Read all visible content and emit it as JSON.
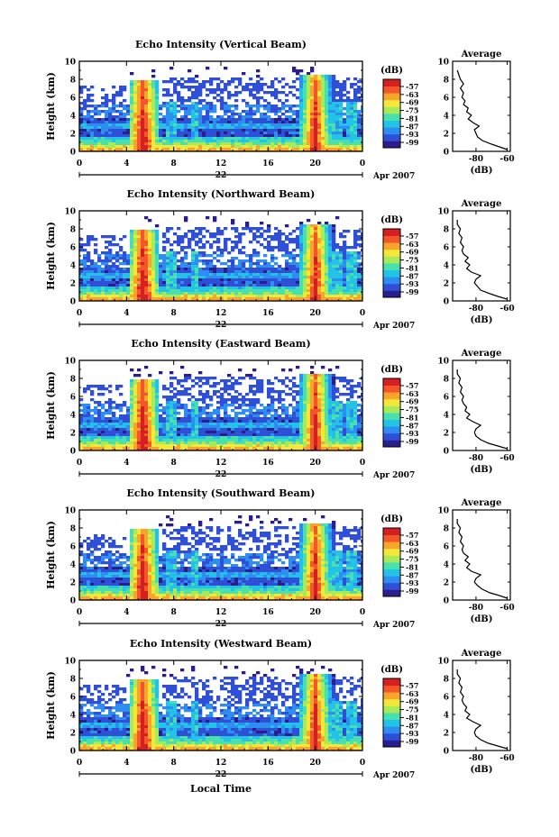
{
  "chart_data": {
    "type": "heatmap",
    "xlabel": "Local Time",
    "date_label": "22",
    "month_year": "Apr 2007",
    "ylabel": "Height (km)",
    "xlim": [
      0,
      24
    ],
    "ylim": [
      0,
      10
    ],
    "x_ticks": [
      "0",
      "4",
      "8",
      "12",
      "16",
      "20",
      "0"
    ],
    "y_ticks": [
      "0",
      "2",
      "4",
      "6",
      "8",
      "10"
    ],
    "colorbar": {
      "unit": "(dB)",
      "ticks": [
        "-57",
        "-63",
        "-69",
        "-75",
        "-81",
        "-87",
        "-93",
        "-99"
      ],
      "colors": [
        "#2b1d8c",
        "#2f4fd6",
        "#2e8ef0",
        "#22c3e6",
        "#49e0b0",
        "#a8ea5a",
        "#f3e83a",
        "#f9a52c",
        "#f3562a",
        "#d42020"
      ]
    },
    "profile": {
      "title": "Average",
      "xlabel": "(dB)",
      "x_ticks": [
        "-80",
        "-60"
      ],
      "xlim": [
        -95,
        -58
      ],
      "y_ticks": [
        "0",
        "2",
        "4",
        "6",
        "8",
        "10"
      ],
      "ylim": [
        0,
        10
      ]
    },
    "panels": [
      {
        "title": "Echo Intensity (Vertical Beam)",
        "profile_values": [
          [
            0.2,
            -60
          ],
          [
            0.5,
            -65
          ],
          [
            0.8,
            -70
          ],
          [
            1.2,
            -76
          ],
          [
            1.6,
            -79
          ],
          [
            2.0,
            -80
          ],
          [
            2.4,
            -81
          ],
          [
            2.8,
            -78
          ],
          [
            3.2,
            -82
          ],
          [
            3.6,
            -85
          ],
          [
            4.0,
            -83
          ],
          [
            4.4,
            -86
          ],
          [
            4.8,
            -85
          ],
          [
            5.2,
            -88
          ],
          [
            5.6,
            -87
          ],
          [
            6.0,
            -89
          ],
          [
            6.5,
            -88
          ],
          [
            7.0,
            -90
          ],
          [
            7.5,
            -88
          ],
          [
            8.0,
            -90
          ],
          [
            8.5,
            -91
          ],
          [
            9.0,
            -92
          ]
        ]
      },
      {
        "title": "Echo Intensity (Northward Beam)",
        "profile_values": [
          [
            0.2,
            -60
          ],
          [
            0.5,
            -66
          ],
          [
            0.8,
            -71
          ],
          [
            1.2,
            -77
          ],
          [
            1.6,
            -79
          ],
          [
            2.0,
            -81
          ],
          [
            2.4,
            -80
          ],
          [
            2.8,
            -77
          ],
          [
            3.2,
            -83
          ],
          [
            3.6,
            -86
          ],
          [
            4.0,
            -84
          ],
          [
            4.4,
            -87
          ],
          [
            4.8,
            -85
          ],
          [
            5.2,
            -88
          ],
          [
            5.6,
            -89
          ],
          [
            6.0,
            -88
          ],
          [
            6.5,
            -90
          ],
          [
            7.0,
            -89
          ],
          [
            7.5,
            -91
          ],
          [
            8.0,
            -90
          ],
          [
            8.5,
            -92
          ],
          [
            9.0,
            -92
          ]
        ]
      },
      {
        "title": "Echo Intensity (Eastward Beam)",
        "profile_values": [
          [
            0.2,
            -60
          ],
          [
            0.5,
            -66
          ],
          [
            0.8,
            -72
          ],
          [
            1.2,
            -77
          ],
          [
            1.6,
            -80
          ],
          [
            2.0,
            -81
          ],
          [
            2.4,
            -80
          ],
          [
            2.8,
            -77
          ],
          [
            3.2,
            -82
          ],
          [
            3.6,
            -86
          ],
          [
            4.0,
            -84
          ],
          [
            4.4,
            -87
          ],
          [
            4.8,
            -86
          ],
          [
            5.2,
            -88
          ],
          [
            5.6,
            -89
          ],
          [
            6.0,
            -88
          ],
          [
            6.5,
            -90
          ],
          [
            7.0,
            -89
          ],
          [
            7.5,
            -91
          ],
          [
            8.0,
            -90
          ],
          [
            8.5,
            -92
          ],
          [
            9.0,
            -92
          ]
        ]
      },
      {
        "title": "Echo Intensity (Southward Beam)",
        "profile_values": [
          [
            0.2,
            -60
          ],
          [
            0.5,
            -65
          ],
          [
            0.8,
            -71
          ],
          [
            1.2,
            -76
          ],
          [
            1.6,
            -79
          ],
          [
            2.0,
            -81
          ],
          [
            2.4,
            -80
          ],
          [
            2.8,
            -77
          ],
          [
            3.2,
            -83
          ],
          [
            3.6,
            -86
          ],
          [
            4.0,
            -84
          ],
          [
            4.4,
            -87
          ],
          [
            4.8,
            -85
          ],
          [
            5.2,
            -88
          ],
          [
            5.6,
            -89
          ],
          [
            6.0,
            -88
          ],
          [
            6.5,
            -90
          ],
          [
            7.0,
            -89
          ],
          [
            7.5,
            -91
          ],
          [
            8.0,
            -90
          ],
          [
            8.5,
            -92
          ],
          [
            9.0,
            -92
          ]
        ]
      },
      {
        "title": "Echo Intensity (Westward Beam)",
        "profile_values": [
          [
            0.2,
            -60
          ],
          [
            0.5,
            -66
          ],
          [
            0.8,
            -72
          ],
          [
            1.2,
            -77
          ],
          [
            1.6,
            -80
          ],
          [
            2.0,
            -81
          ],
          [
            2.4,
            -80
          ],
          [
            2.8,
            -77
          ],
          [
            3.2,
            -82
          ],
          [
            3.6,
            -86
          ],
          [
            4.0,
            -84
          ],
          [
            4.4,
            -87
          ],
          [
            4.8,
            -86
          ],
          [
            5.2,
            -88
          ],
          [
            5.6,
            -89
          ],
          [
            6.0,
            -88
          ],
          [
            6.5,
            -90
          ],
          [
            7.0,
            -89
          ],
          [
            7.5,
            -91
          ],
          [
            8.0,
            -90
          ],
          [
            8.5,
            -92
          ],
          [
            9.0,
            -92
          ]
        ]
      }
    ]
  }
}
